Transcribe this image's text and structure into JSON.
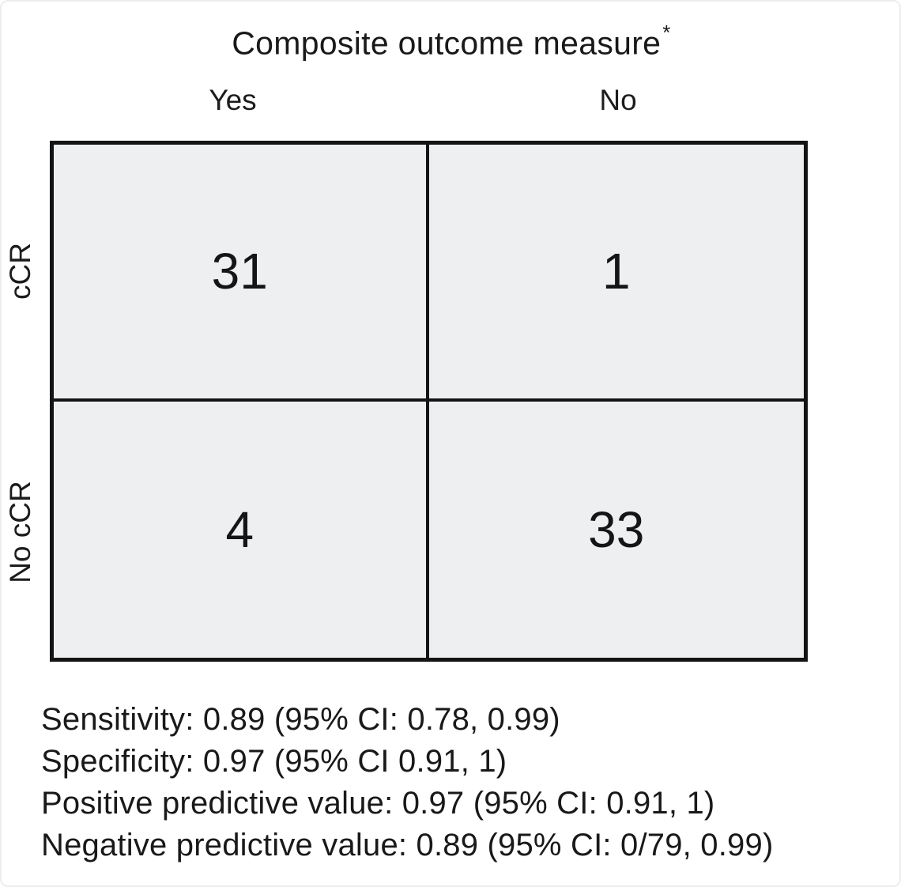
{
  "figure": {
    "title": "Composite outcome measure",
    "title_superscript": "*"
  },
  "matrix": {
    "column_headers": [
      "Yes",
      "No"
    ],
    "row_headers": [
      "cCR",
      "No cCR"
    ],
    "cells": [
      [
        "31",
        "1"
      ],
      [
        "4",
        "33"
      ]
    ]
  },
  "stats": {
    "lines": [
      "Sensitivity: 0.89 (95% CI: 0.78, 0.99)",
      "Specificity: 0.97 (95% CI 0.91, 1)",
      "Positive predictive value: 0.97 (95% CI: 0.91, 1)",
      "Negative predictive value: 0.89 (95% CI: 0/79, 0.99)"
    ]
  },
  "colors": {
    "page_background": "#ffffff",
    "cell_background": "#edeff1",
    "border": "#141414",
    "text": "#1a1a1a"
  },
  "chart_data": {
    "type": "table",
    "title": "Composite outcome measure*",
    "columns": [
      "Yes",
      "No"
    ],
    "rows": [
      "cCR",
      "No cCR"
    ],
    "values": [
      [
        31,
        1
      ],
      [
        4,
        33
      ]
    ],
    "annotations": {
      "sensitivity": "0.89 (95% CI: 0.78, 0.99)",
      "specificity": "0.97 (95% CI 0.91, 1)",
      "positive_predictive_value": "0.97 (95% CI: 0.91, 1)",
      "negative_predictive_value": "0.89 (95% CI: 0/79, 0.99)"
    }
  }
}
